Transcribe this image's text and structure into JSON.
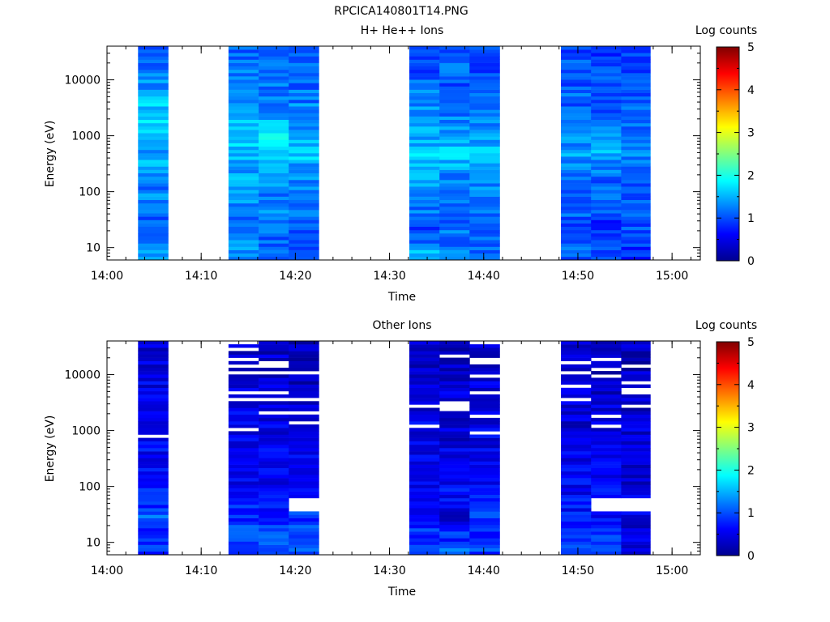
{
  "figure_title": "RPCICA140801T14.PNG",
  "colors": {
    "colormap": [
      "#00008f",
      "#0000ff",
      "#0080ff",
      "#00ffff",
      "#80ff80",
      "#ffff00",
      "#ff8000",
      "#ff0000",
      "#800000"
    ],
    "axis": "#000000",
    "background": "#ffffff"
  },
  "chart_data": [
    {
      "type": "heatmap",
      "title": "H+ He++ Ions",
      "xlabel": "Time",
      "ylabel": "Energy (eV)",
      "colorbar_label": "Log counts",
      "colorbar_range": [
        0,
        5
      ],
      "colorbar_ticks": [
        "0",
        "1",
        "2",
        "3",
        "4",
        "5"
      ],
      "xlim": [
        "14:00",
        "15:03"
      ],
      "x_ticks": [
        "14:00",
        "14:10",
        "14:20",
        "14:30",
        "14:40",
        "14:50",
        "15:00"
      ],
      "y_scale": "log",
      "ylim": [
        6,
        40000
      ],
      "y_ticks": [
        "10",
        "100",
        "1000",
        "10000"
      ],
      "grid": false,
      "time_blocks": [
        {
          "start": "14:03.3",
          "end": "14:06.5",
          "base": [
            1.4,
            1.2,
            1.1,
            1.2,
            1.3,
            1.2,
            1.5,
            1.4,
            1.5,
            1.7,
            1.6,
            1.5,
            1.3,
            1.2,
            1.1
          ]
        },
        {
          "start": "14:12.9",
          "end": "14:16.1",
          "base": [
            1.4,
            1.3,
            1.2,
            1.2,
            1.3,
            1.5,
            1.4,
            1.6,
            1.7,
            1.5,
            1.4,
            1.3,
            1.2,
            1.2,
            1.1
          ]
        },
        {
          "start": "14:16.1",
          "end": "14:19.3",
          "base": [
            1.2,
            1.1,
            1.2,
            1.3,
            1.2,
            1.4,
            1.5,
            1.6,
            1.8,
            1.5,
            1.3,
            1.2,
            1.2,
            1.1,
            1.0
          ]
        },
        {
          "start": "14:19.3",
          "end": "14:22.5",
          "base": [
            0.9,
            1.0,
            1.1,
            1.2,
            1.2,
            1.3,
            1.4,
            1.6,
            1.5,
            1.4,
            1.3,
            1.2,
            1.1,
            1.1,
            1.0
          ]
        },
        {
          "start": "14:32.1",
          "end": "14:35.3",
          "base": [
            1.5,
            1.1,
            1.0,
            1.2,
            1.3,
            1.4,
            1.6,
            1.9,
            1.5,
            1.4,
            1.3,
            1.2,
            1.1,
            1.0,
            1.0
          ]
        },
        {
          "start": "14:35.3",
          "end": "14:38.5",
          "base": [
            1.3,
            1.2,
            1.1,
            1.2,
            1.2,
            1.3,
            1.5,
            1.6,
            1.5,
            1.3,
            1.2,
            1.1,
            1.0,
            1.1,
            1.0
          ]
        },
        {
          "start": "14:38.5",
          "end": "14:41.7",
          "base": [
            1.1,
            1.1,
            1.2,
            1.1,
            1.2,
            1.3,
            1.4,
            1.5,
            1.4,
            1.3,
            1.2,
            1.1,
            1.1,
            1.0,
            1.0
          ]
        },
        {
          "start": "14:48.2",
          "end": "14:51.4",
          "base": [
            1.1,
            1.0,
            1.0,
            1.1,
            1.1,
            1.2,
            1.3,
            1.4,
            1.3,
            1.2,
            1.1,
            1.1,
            1.0,
            1.0,
            1.0
          ]
        },
        {
          "start": "14:51.4",
          "end": "14:54.6",
          "base": [
            1.0,
            0.9,
            0.8,
            1.0,
            1.1,
            1.1,
            1.3,
            1.5,
            1.3,
            1.2,
            1.1,
            1.0,
            1.0,
            1.0,
            0.9
          ]
        },
        {
          "start": "14:54.6",
          "end": "14:57.7",
          "base": [
            0.8,
            0.9,
            1.0,
            1.0,
            1.1,
            1.1,
            1.2,
            1.3,
            1.2,
            1.2,
            1.1,
            1.0,
            1.0,
            0.9,
            0.9
          ]
        }
      ]
    },
    {
      "type": "heatmap",
      "title": "Other Ions",
      "xlabel": "Time",
      "ylabel": "Energy (eV)",
      "colorbar_label": "Log counts",
      "colorbar_range": [
        0,
        5
      ],
      "colorbar_ticks": [
        "0",
        "1",
        "2",
        "3",
        "4",
        "5"
      ],
      "xlim": [
        "14:00",
        "15:03"
      ],
      "x_ticks": [
        "14:00",
        "14:10",
        "14:20",
        "14:30",
        "14:40",
        "14:50",
        "15:00"
      ],
      "y_scale": "log",
      "ylim": [
        6,
        40000
      ],
      "y_ticks": [
        "10",
        "100",
        "1000",
        "10000"
      ],
      "grid": false,
      "time_blocks": [
        {
          "start": "14:03.3",
          "end": "14:06.5",
          "base": [
            0.9,
            0.9,
            1.1,
            0.8,
            0.7,
            0.7,
            0.6,
            0.6,
            0.6,
            0.6,
            0.5,
            0.5,
            0.5,
            0.4,
            0.4
          ]
        },
        {
          "start": "14:12.9",
          "end": "14:16.1",
          "base": [
            0.9,
            0.9,
            0.8,
            0.8,
            0.7,
            0.6,
            0.6,
            0.5,
            0.5,
            0.5,
            0.5,
            0.4,
            0.4,
            0.4,
            0.4
          ]
        },
        {
          "start": "14:16.1",
          "end": "14:19.3",
          "base": [
            1.1,
            1.1,
            0.8,
            0.8,
            0.7,
            0.6,
            0.6,
            0.6,
            0.5,
            0.5,
            0.4,
            0.4,
            0.4,
            0.4,
            0.3
          ]
        },
        {
          "start": "14:19.3",
          "end": "14:22.5",
          "base": [
            1.1,
            1.1,
            0.9,
            null,
            0.6,
            0.5,
            0.5,
            0.5,
            0.5,
            0.4,
            0.4,
            0.4,
            0.3,
            0.3,
            0.3
          ]
        },
        {
          "start": "14:32.1",
          "end": "14:35.3",
          "base": [
            0.8,
            0.8,
            0.7,
            0.5,
            0.6,
            0.6,
            0.5,
            0.5,
            0.5,
            0.5,
            0.4,
            0.4,
            0.4,
            0.3,
            0.3
          ]
        },
        {
          "start": "14:35.3",
          "end": "14:38.5",
          "base": [
            1.2,
            0.8,
            0.4,
            0.6,
            0.6,
            0.5,
            0.5,
            0.5,
            0.4,
            0.4,
            0.4,
            0.4,
            0.3,
            0.3,
            0.3
          ]
        },
        {
          "start": "14:38.5",
          "end": "14:41.7",
          "base": [
            0.9,
            0.8,
            0.9,
            0.8,
            0.7,
            0.6,
            0.5,
            0.5,
            0.5,
            0.4,
            0.4,
            0.4,
            0.4,
            0.3,
            0.3
          ]
        },
        {
          "start": "14:48.2",
          "end": "14:51.4",
          "base": [
            0.8,
            0.8,
            0.7,
            0.7,
            0.6,
            0.6,
            0.5,
            0.5,
            0.5,
            0.4,
            0.4,
            0.4,
            0.3,
            0.3,
            0.3
          ]
        },
        {
          "start": "14:51.4",
          "end": "14:54.6",
          "base": [
            0.8,
            0.9,
            0.6,
            null,
            0.6,
            0.5,
            0.5,
            0.5,
            0.4,
            0.4,
            0.4,
            0.3,
            0.3,
            0.3,
            0.3
          ]
        },
        {
          "start": "14:54.6",
          "end": "14:57.7",
          "base": [
            0.5,
            0.4,
            0.5,
            null,
            0.5,
            0.4,
            0.4,
            0.4,
            0.4,
            0.3,
            0.3,
            0.3,
            0.3,
            0.3,
            0.3
          ]
        }
      ]
    }
  ]
}
